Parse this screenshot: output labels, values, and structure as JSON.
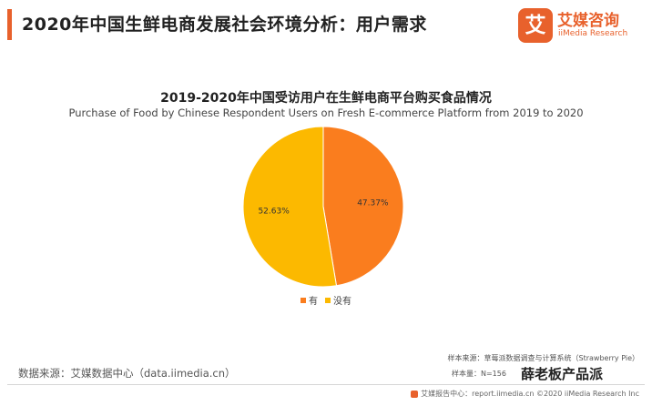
{
  "header": {
    "title": "2020年中国生鲜电商发展社会环境分析：用户需求",
    "accent_color": "#e8612c"
  },
  "brand": {
    "mark": "艾",
    "name_cn": "艾媒咨询",
    "name_en": "iiMedia Research"
  },
  "chart_data": {
    "type": "pie",
    "title": "2019-2020年中国受访用户在生鲜电商平台购买食品情况",
    "subtitle": "Purchase of Food by Chinese Respondent Users on Fresh E-commerce Platform from 2019 to 2020",
    "slices": [
      {
        "label": "有",
        "value": 47.37,
        "display": "47.37%",
        "color": "#fa7d1e"
      },
      {
        "label": "没有",
        "value": 52.63,
        "display": "52.63%",
        "color": "#fcb900"
      }
    ],
    "legend_position": "bottom"
  },
  "footer": {
    "source": "数据来源：艾媒数据中心（data.iimedia.cn）",
    "sample_source": "样本来源：草莓派数据调查与计算系统（Strawberry Pie）",
    "sample_size": "样本量：N=156",
    "report_center": "艾媒报告中心：report.iimedia.cn  ©2020  iiMedia Research Inc",
    "watermark": "薛老板产品派"
  }
}
